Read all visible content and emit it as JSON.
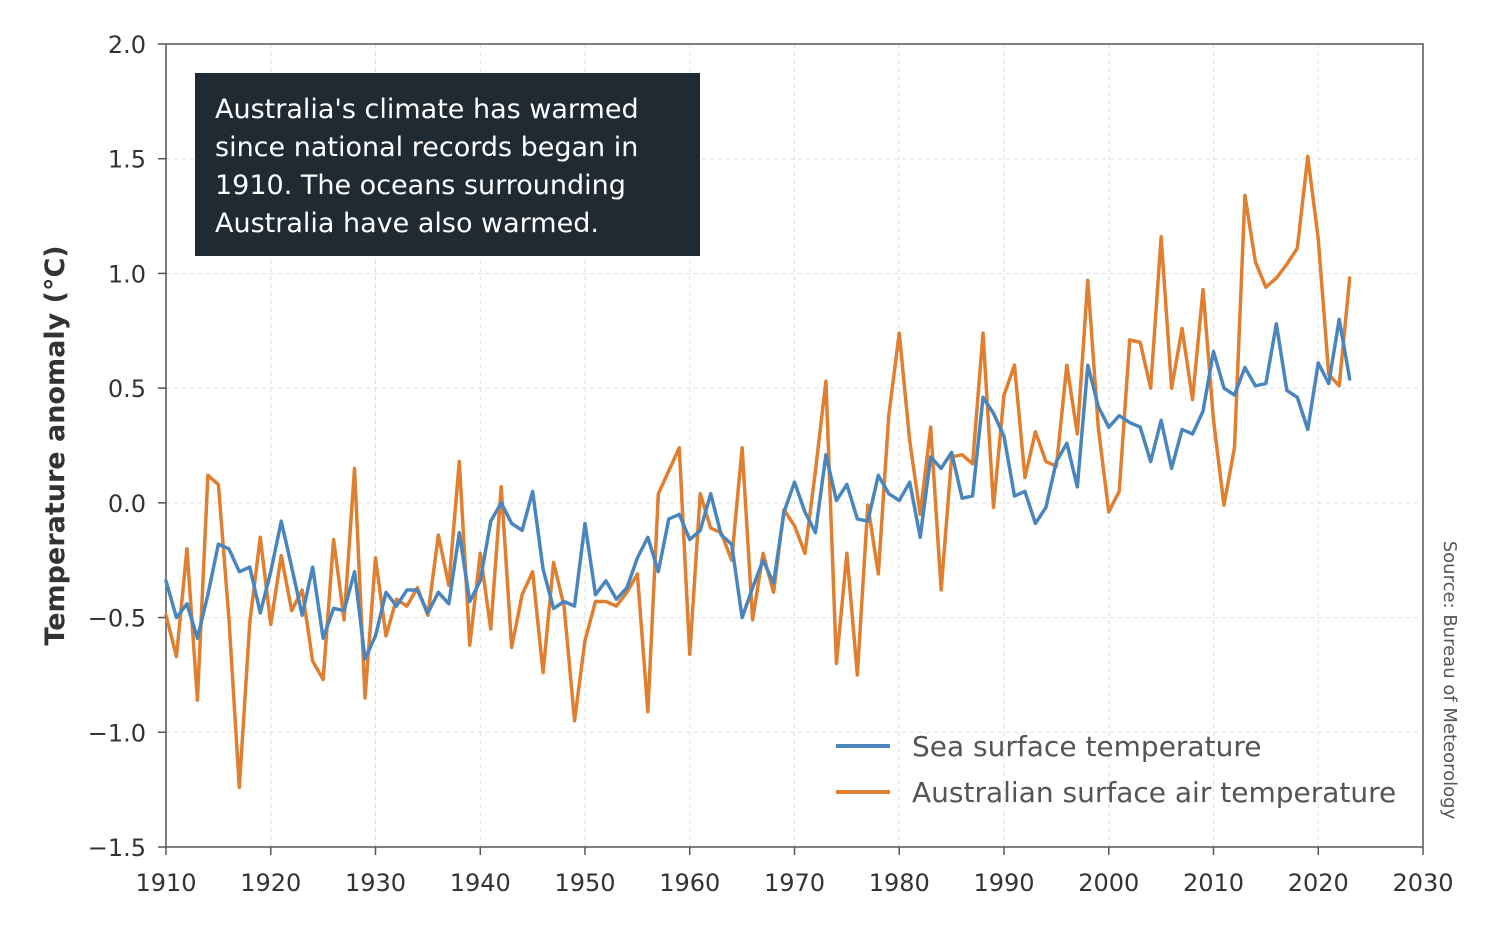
{
  "colors": {
    "sea": "#4a86bd",
    "air": "#e07f2f",
    "annotation_bg": "#1f2a33",
    "text": "#333333",
    "grid": "#dddddd"
  },
  "annotation": {
    "text": "Australia's climate has warmed since national records began in 1910. The oceans surrounding Australia have also warmed."
  },
  "source": "Source: Bureau of Meteorology",
  "chart_data": {
    "type": "line",
    "title": "",
    "xlabel": "",
    "ylabel": "Temperature anomaly (°C)",
    "xlim": [
      1910,
      2030
    ],
    "ylim": [
      -1.5,
      2.0
    ],
    "x_ticks": [
      1910,
      1920,
      1930,
      1940,
      1950,
      1960,
      1970,
      1980,
      1990,
      2000,
      2010,
      2020,
      2030
    ],
    "x_tick_labels": [
      "1910",
      "1920",
      "1930",
      "1940",
      "1950",
      "1960",
      "1970",
      "1980",
      "1990",
      "2000",
      "2010",
      "2020",
      "2030"
    ],
    "y_ticks": [
      -1.5,
      -1.0,
      -0.5,
      0.0,
      0.5,
      1.0,
      1.5,
      2.0
    ],
    "y_tick_labels": [
      "−1.5",
      "−1.0",
      "−0.5",
      "0.0",
      "0.5",
      "1.0",
      "1.5",
      "2.0"
    ],
    "grid": true,
    "legend_position": "bottom-right",
    "x_start": 1910,
    "series": [
      {
        "name": "Sea surface temperature",
        "color": "#4a86bd",
        "values": [
          -0.34,
          -0.5,
          -0.44,
          -0.59,
          -0.4,
          -0.18,
          -0.2,
          -0.3,
          -0.28,
          -0.48,
          -0.3,
          -0.08,
          -0.28,
          -0.49,
          -0.28,
          -0.59,
          -0.46,
          -0.47,
          -0.3,
          -0.68,
          -0.58,
          -0.39,
          -0.45,
          -0.38,
          -0.38,
          -0.48,
          -0.39,
          -0.44,
          -0.13,
          -0.43,
          -0.34,
          -0.08,
          0.0,
          -0.09,
          -0.12,
          0.05,
          -0.29,
          -0.46,
          -0.43,
          -0.45,
          -0.09,
          -0.4,
          -0.34,
          -0.42,
          -0.37,
          -0.24,
          -0.15,
          -0.3,
          -0.07,
          -0.05,
          -0.16,
          -0.12,
          0.04,
          -0.14,
          -0.18,
          -0.5,
          -0.37,
          -0.25,
          -0.35,
          -0.04,
          0.09,
          -0.04,
          -0.13,
          0.21,
          0.01,
          0.08,
          -0.07,
          -0.08,
          0.12,
          0.04,
          0.01,
          0.09,
          -0.15,
          0.2,
          0.15,
          0.22,
          0.02,
          0.03,
          0.46,
          0.39,
          0.29,
          0.03,
          0.05,
          -0.09,
          -0.02,
          0.18,
          0.26,
          0.07,
          0.6,
          0.42,
          0.33,
          0.38,
          0.35,
          0.33,
          0.18,
          0.36,
          0.15,
          0.32,
          0.3,
          0.4,
          0.66,
          0.5,
          0.47,
          0.59,
          0.51,
          0.52,
          0.78,
          0.49,
          0.46,
          0.32,
          0.61,
          0.52,
          0.8,
          0.54
        ]
      },
      {
        "name": "Australian surface air temperature",
        "color": "#e07f2f",
        "values": [
          -0.49,
          -0.67,
          -0.2,
          -0.86,
          0.12,
          0.08,
          -0.5,
          -1.24,
          -0.52,
          -0.15,
          -0.53,
          -0.23,
          -0.47,
          -0.38,
          -0.69,
          -0.77,
          -0.16,
          -0.51,
          0.15,
          -0.85,
          -0.24,
          -0.58,
          -0.42,
          -0.45,
          -0.37,
          -0.49,
          -0.14,
          -0.36,
          0.18,
          -0.62,
          -0.22,
          -0.55,
          0.07,
          -0.63,
          -0.4,
          -0.3,
          -0.74,
          -0.26,
          -0.45,
          -0.95,
          -0.6,
          -0.43,
          -0.43,
          -0.45,
          -0.39,
          -0.31,
          -0.91,
          0.04,
          0.14,
          0.24,
          -0.66,
          0.04,
          -0.11,
          -0.13,
          -0.25,
          0.24,
          -0.51,
          -0.22,
          -0.39,
          -0.03,
          -0.1,
          -0.22,
          0.14,
          0.53,
          -0.7,
          -0.22,
          -0.75,
          -0.01,
          -0.31,
          0.38,
          0.74,
          0.27,
          -0.05,
          0.33,
          -0.38,
          0.2,
          0.21,
          0.17,
          0.74,
          -0.02,
          0.47,
          0.6,
          0.11,
          0.31,
          0.18,
          0.16,
          0.6,
          0.3,
          0.97,
          0.33,
          -0.04,
          0.05,
          0.71,
          0.7,
          0.5,
          1.16,
          0.5,
          0.76,
          0.45,
          0.93,
          0.36,
          -0.01,
          0.24,
          1.34,
          1.05,
          0.94,
          0.98,
          1.04,
          1.11,
          1.51,
          1.15,
          0.56,
          0.51,
          0.98
        ]
      }
    ]
  }
}
